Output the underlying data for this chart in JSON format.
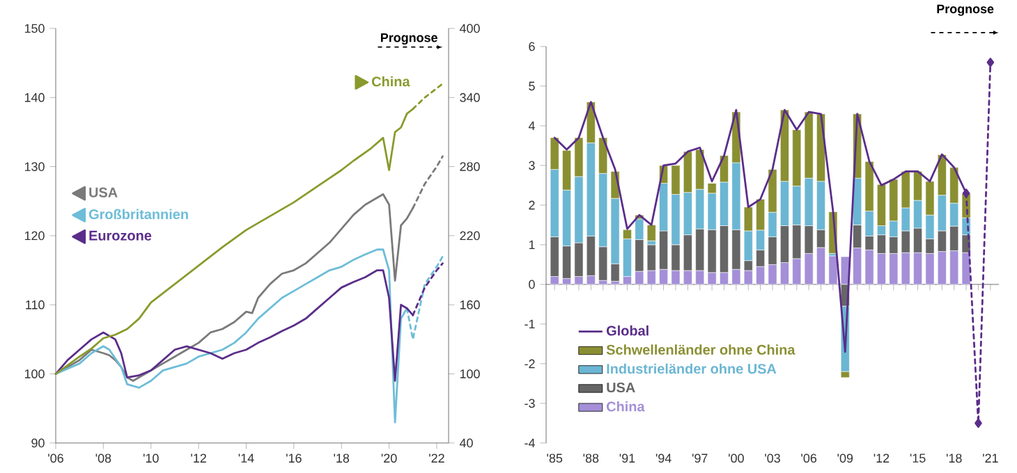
{
  "chart_data": [
    {
      "type": "line",
      "xlim": [
        2006,
        2022.5
      ],
      "xticks": [
        {
          "value": 2006,
          "label": "'06"
        },
        {
          "value": 2008,
          "label": "'08"
        },
        {
          "value": 2010,
          "label": "'10"
        },
        {
          "value": 2012,
          "label": "'12"
        },
        {
          "value": 2014,
          "label": "'14"
        },
        {
          "value": 2016,
          "label": "'16"
        },
        {
          "value": 2018,
          "label": "'18"
        },
        {
          "value": 2020,
          "label": "'20"
        },
        {
          "value": 2022,
          "label": "'22"
        }
      ],
      "ylim": [
        90,
        150
      ],
      "yticks": [
        90,
        100,
        110,
        120,
        130,
        140,
        150
      ],
      "y2lim": [
        40,
        400
      ],
      "y2ticks": [
        40,
        100,
        160,
        220,
        280,
        340,
        400
      ],
      "legend": "left",
      "annotations": [
        "Prognose"
      ],
      "series": [
        {
          "name": "USA",
          "color": "#7a7a7a",
          "x": [
            2006,
            2006.5,
            2007,
            2007.5,
            2008,
            2008.25,
            2008.5,
            2008.75,
            2009,
            2009.25,
            2009.5,
            2010,
            2010.5,
            2011,
            2011.5,
            2012,
            2012.5,
            2013,
            2013.5,
            2014,
            2014.25,
            2014.5,
            2015,
            2015.5,
            2016,
            2016.5,
            2017,
            2017.5,
            2018,
            2018.5,
            2019,
            2019.5,
            2019.75,
            2020,
            2020.25,
            2020.5,
            2020.75,
            2021
          ],
          "values": [
            100,
            101,
            102,
            103.5,
            103,
            102.7,
            102,
            101,
            99.5,
            99,
            99.5,
            100.5,
            101.5,
            102.5,
            103.5,
            104.5,
            106,
            106.5,
            107.5,
            109,
            108.8,
            111,
            113,
            114.5,
            115,
            116,
            117.5,
            119,
            121,
            123,
            124.5,
            125.5,
            126,
            124.5,
            113.5,
            121.5,
            122.5,
            124
          ]
        },
        {
          "color": "#7a7a7a",
          "line_style": "dashed",
          "x": [
            2021,
            2021.5,
            2022,
            2022.25
          ],
          "values": [
            124,
            127.5,
            130,
            131.5
          ]
        },
        {
          "name": "Großbritannien",
          "color": "#6dbdd8",
          "x": [
            2006,
            2007,
            2007.5,
            2008,
            2008.25,
            2008.75,
            2009,
            2009.5,
            2010,
            2010.5,
            2011,
            2011.5,
            2012,
            2012.5,
            2013,
            2013.5,
            2014,
            2014.5,
            2015,
            2015.5,
            2016,
            2016.5,
            2017,
            2017.5,
            2018,
            2018.5,
            2019,
            2019.5,
            2019.75,
            2020,
            2020.25,
            2020.5,
            2020.75
          ],
          "values": [
            100,
            101.5,
            103,
            104,
            103.5,
            101,
            98.5,
            98,
            99,
            100.5,
            101,
            101.5,
            102.5,
            103,
            103.5,
            104.5,
            106,
            108,
            109.5,
            111,
            112,
            113,
            114,
            115,
            115.5,
            116.5,
            117.3,
            118,
            118,
            115,
            93,
            108,
            109.5
          ]
        },
        {
          "color": "#6dbdd8",
          "line_style": "dashed",
          "x": [
            2020.75,
            2021,
            2021.5,
            2022,
            2022.25
          ],
          "values": [
            109.5,
            105,
            113,
            115.5,
            117
          ]
        },
        {
          "name": "Eurozone",
          "color": "#5b2d8a",
          "x": [
            2006,
            2006.5,
            2007,
            2007.5,
            2008,
            2008.5,
            2008.75,
            2009,
            2009.5,
            2010,
            2010.5,
            2011,
            2011.5,
            2012,
            2012.5,
            2013,
            2013.5,
            2014,
            2014.5,
            2015,
            2015.5,
            2016,
            2016.5,
            2017,
            2017.5,
            2018,
            2018.5,
            2019,
            2019.5,
            2019.75,
            2020,
            2020.25,
            2020.5,
            2020.75,
            2021
          ],
          "values": [
            100,
            102,
            103.5,
            105,
            106,
            105,
            103,
            99.5,
            99.8,
            100.5,
            102,
            103.5,
            104,
            103.5,
            103,
            102.2,
            103,
            103.5,
            104.5,
            105.3,
            106.2,
            107,
            108,
            109.5,
            111,
            112.5,
            113.3,
            114,
            115,
            115,
            111,
            99,
            110,
            109.5,
            108.5
          ]
        },
        {
          "color": "#5b2d8a",
          "line_style": "dashed",
          "x": [
            2021,
            2021.5,
            2022,
            2022.25
          ],
          "values": [
            108.5,
            112.5,
            115,
            116
          ]
        },
        {
          "name": "China",
          "color": "#8a9a2c",
          "axis": "y2",
          "x": [
            2006,
            2007,
            2007.5,
            2008,
            2008.5,
            2009,
            2009.5,
            2010,
            2011,
            2012,
            2013,
            2014,
            2015,
            2016,
            2017,
            2018,
            2018.5,
            2019.25,
            2019.75,
            2020,
            2020.25,
            2020.5,
            2020.75,
            2021
          ],
          "values": [
            100,
            115,
            122,
            131,
            134,
            139,
            148,
            162,
            178,
            194,
            210,
            225,
            237,
            249,
            263,
            277,
            285,
            296,
            305,
            277,
            310,
            314,
            326,
            330
          ]
        },
        {
          "color": "#8a9a2c",
          "axis": "y2",
          "line_style": "dashed",
          "x": [
            2021,
            2021.5,
            2022,
            2022.25
          ],
          "values": [
            330,
            340,
            348,
            352
          ]
        }
      ]
    },
    {
      "type": "bar",
      "stacked": true,
      "categories": [
        "'85",
        null,
        null,
        "'88",
        null,
        null,
        "'91",
        null,
        null,
        "'94",
        null,
        null,
        "'97",
        null,
        null,
        "'00",
        null,
        null,
        "'03",
        null,
        null,
        "'06",
        null,
        null,
        "'09",
        null,
        null,
        "'12",
        null,
        null,
        "'15",
        null,
        null,
        "'18",
        null,
        null,
        "'21"
      ],
      "ylim": [
        -4,
        6
      ],
      "yticks": [
        -4,
        -3,
        -2,
        -1,
        0,
        1,
        2,
        3,
        4,
        5,
        6
      ],
      "legend": "bottom left",
      "annotations": [
        "Prognose"
      ],
      "series": [
        {
          "name": "China",
          "color": "#a48fd8",
          "values": [
            0.2,
            0.15,
            0.2,
            0.22,
            0.1,
            0.08,
            0.2,
            0.33,
            0.35,
            0.38,
            0.35,
            0.35,
            0.35,
            0.3,
            0.3,
            0.38,
            0.35,
            0.45,
            0.5,
            0.55,
            0.65,
            0.78,
            0.93,
            0.72,
            0.7,
            0.92,
            0.87,
            0.78,
            0.78,
            0.8,
            0.8,
            0.78,
            0.83,
            0.85,
            0.8,
            null,
            null
          ]
        },
        {
          "name": "USA",
          "color": "#666666",
          "values": [
            1.0,
            0.82,
            0.85,
            1.0,
            0.85,
            0.44,
            null,
            0.8,
            0.65,
            0.97,
            0.65,
            0.9,
            1.05,
            1.08,
            1.18,
            1.0,
            0.25,
            0.42,
            0.7,
            0.93,
            0.85,
            0.7,
            0.45,
            null,
            -0.55,
            0.58,
            0.35,
            0.47,
            0.42,
            0.55,
            0.62,
            0.37,
            0.52,
            0.62,
            0.45,
            null,
            null
          ]
        },
        {
          "name": "Industrieländer ohne USA",
          "color": "#6bb6d3",
          "values": [
            1.7,
            1.41,
            1.67,
            2.35,
            1.85,
            1.65,
            0.95,
            0.52,
            0.1,
            1.2,
            1.27,
            1.07,
            1.0,
            0.92,
            1.1,
            1.69,
            0.75,
            0.5,
            0.62,
            1.12,
            0.98,
            1.2,
            1.22,
            0.06,
            -1.65,
            1.18,
            0.63,
            0.23,
            0.4,
            0.58,
            0.7,
            0.6,
            0.9,
            0.58,
            0.43,
            null,
            null
          ]
        },
        {
          "name": "Schwellenländer ohne China",
          "color": "#8a8f32",
          "values": [
            0.8,
            1.0,
            0.98,
            1.03,
            0.9,
            0.68,
            0.23,
            0.1,
            0.4,
            0.45,
            0.73,
            1.03,
            1.0,
            0.25,
            0.67,
            1.28,
            0.6,
            0.78,
            1.08,
            1.8,
            1.42,
            1.67,
            1.7,
            1.05,
            -0.15,
            1.62,
            1.25,
            1.04,
            1.05,
            0.92,
            0.73,
            0.85,
            1.02,
            0.9,
            0.62,
            null,
            null
          ]
        },
        {
          "name": "Global",
          "type": "line",
          "color": "#5b2d8a",
          "values": [
            3.7,
            3.4,
            3.7,
            4.6,
            3.7,
            2.9,
            1.4,
            1.75,
            1.5,
            3.0,
            3.05,
            3.35,
            3.45,
            2.6,
            3.25,
            4.4,
            1.95,
            2.15,
            2.9,
            4.4,
            3.9,
            4.35,
            4.3,
            1.85,
            -1.7,
            4.3,
            3.1,
            2.5,
            2.65,
            2.85,
            2.85,
            2.6,
            3.28,
            2.95,
            2.3,
            null,
            null
          ]
        },
        {
          "type": "line",
          "color": "#5b2d8a",
          "line_style": "dashed",
          "marker": "diamond",
          "values": [
            null,
            null,
            null,
            null,
            null,
            null,
            null,
            null,
            null,
            null,
            null,
            null,
            null,
            null,
            null,
            null,
            null,
            null,
            null,
            null,
            null,
            null,
            null,
            null,
            null,
            null,
            null,
            null,
            null,
            null,
            null,
            null,
            null,
            null,
            2.3,
            -3.5,
            5.6
          ]
        }
      ]
    }
  ]
}
